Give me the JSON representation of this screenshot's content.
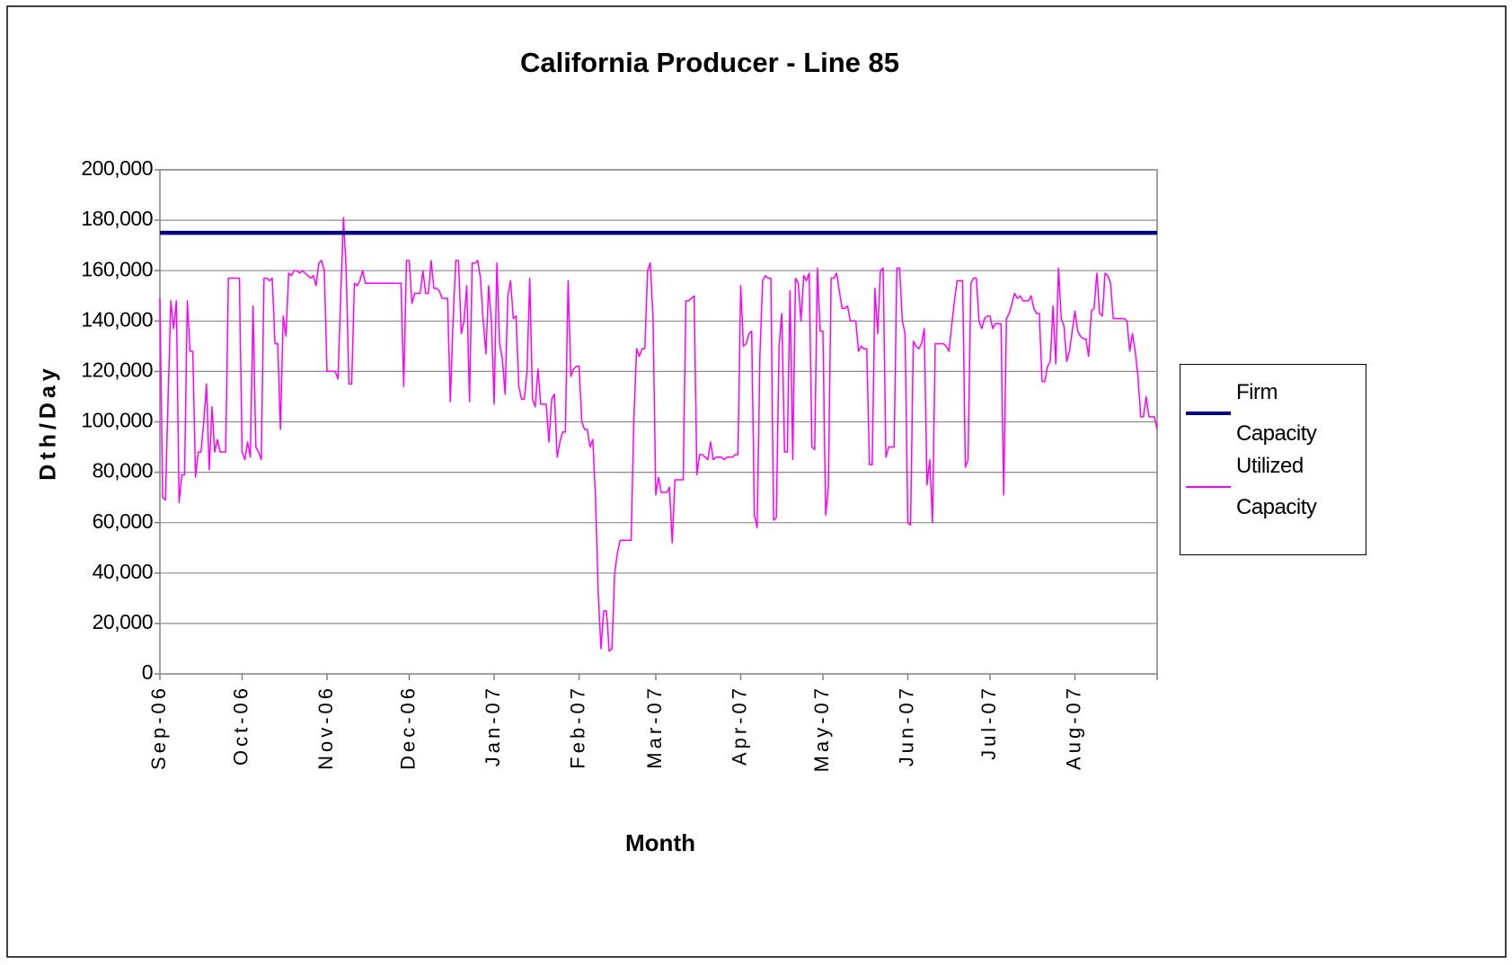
{
  "chart_data": {
    "type": "line",
    "title": "California Producer - Line 85",
    "xlabel": "Month",
    "ylabel": "Dth/Day",
    "categories": [
      "Sep-06",
      null,
      null,
      null,
      null,
      null,
      null,
      null,
      null,
      null,
      null,
      null,
      null,
      null,
      null,
      null,
      null,
      null,
      null,
      null,
      null,
      null,
      null,
      null,
      null,
      null,
      null,
      null,
      null,
      null,
      "Oct-06",
      null,
      null,
      null,
      null,
      null,
      null,
      null,
      null,
      null,
      null,
      null,
      null,
      null,
      null,
      null,
      null,
      null,
      null,
      null,
      null,
      null,
      null,
      null,
      null,
      null,
      null,
      null,
      null,
      null,
      null,
      "Nov-06",
      null,
      null,
      null,
      null,
      null,
      null,
      null,
      null,
      null,
      null,
      null,
      null,
      null,
      null,
      null,
      null,
      null,
      null,
      null,
      null,
      null,
      null,
      null,
      null,
      null,
      null,
      null,
      null,
      null,
      "Dec-06",
      null,
      null,
      null,
      null,
      null,
      null,
      null,
      null,
      null,
      null,
      null,
      null,
      null,
      null,
      null,
      null,
      null,
      null,
      null,
      null,
      null,
      null,
      null,
      null,
      null,
      null,
      null,
      null,
      null,
      null,
      "Jan-07",
      null,
      null,
      null,
      null,
      null,
      null,
      null,
      null,
      null,
      null,
      null,
      null,
      null,
      null,
      null,
      null,
      null,
      null,
      null,
      null,
      null,
      null,
      null,
      null,
      null,
      null,
      null,
      null,
      null,
      null,
      "Feb-07",
      null,
      null,
      null,
      null,
      null,
      null,
      null,
      null,
      null,
      null,
      null,
      null,
      null,
      null,
      null,
      null,
      null,
      null,
      null,
      null,
      null,
      null,
      null,
      null,
      null,
      null,
      null,
      "Mar-07",
      null,
      null,
      null,
      null,
      null,
      null,
      null,
      null,
      null,
      null,
      null,
      null,
      null,
      null,
      null,
      null,
      null,
      null,
      null,
      null,
      null,
      null,
      null,
      null,
      null,
      null,
      null,
      null,
      null,
      null,
      "Apr-07",
      null,
      null,
      null,
      null,
      null,
      null,
      null,
      null,
      null,
      null,
      null,
      null,
      null,
      null,
      null,
      null,
      null,
      null,
      null,
      null,
      null,
      null,
      null,
      null,
      null,
      null,
      null,
      null,
      null,
      "May-07",
      null,
      null,
      null,
      null,
      null,
      null,
      null,
      null,
      null,
      null,
      null,
      null,
      null,
      null,
      null,
      null,
      null,
      null,
      null,
      null,
      null,
      null,
      null,
      null,
      null,
      null,
      null,
      null,
      null,
      null,
      "Jun-07",
      null,
      null,
      null,
      null,
      null,
      null,
      null,
      null,
      null,
      null,
      null,
      null,
      null,
      null,
      null,
      null,
      null,
      null,
      null,
      null,
      null,
      null,
      null,
      null,
      null,
      null,
      null,
      null,
      null,
      "Jul-07",
      null,
      null,
      null,
      null,
      null,
      null,
      null,
      null,
      null,
      null,
      null,
      null,
      null,
      null,
      null,
      null,
      null,
      null,
      null,
      null,
      null,
      null,
      null,
      null,
      null,
      null,
      null,
      null,
      null,
      null,
      "Aug-07",
      null,
      null,
      null,
      null,
      null,
      null,
      null,
      null,
      null,
      null,
      null,
      null,
      null,
      null,
      null,
      null,
      null,
      null,
      null,
      null,
      null,
      null,
      null,
      null,
      null,
      null,
      null,
      null,
      null,
      null
    ],
    "series": [
      {
        "name": "Firm Capacity",
        "color": "#000080",
        "values": [
          175000,
          175000,
          175000,
          175000,
          175000,
          175000,
          175000,
          175000,
          175000,
          175000,
          175000,
          175000,
          175000,
          175000,
          175000,
          175000,
          175000,
          175000,
          175000,
          175000,
          175000,
          175000,
          175000,
          175000,
          175000,
          175000,
          175000,
          175000,
          175000,
          175000,
          175000,
          175000,
          175000,
          175000,
          175000,
          175000,
          175000,
          175000,
          175000,
          175000,
          175000,
          175000,
          175000,
          175000,
          175000,
          175000,
          175000,
          175000,
          175000,
          175000,
          175000,
          175000,
          175000,
          175000,
          175000,
          175000,
          175000,
          175000,
          175000,
          175000,
          175000,
          175000,
          175000,
          175000,
          175000,
          175000,
          175000,
          175000,
          175000,
          175000,
          175000,
          175000,
          175000,
          175000,
          175000,
          175000,
          175000,
          175000,
          175000,
          175000,
          175000,
          175000,
          175000,
          175000,
          175000,
          175000,
          175000,
          175000,
          175000,
          175000,
          175000,
          175000,
          175000,
          175000,
          175000,
          175000,
          175000,
          175000,
          175000,
          175000,
          175000,
          175000,
          175000,
          175000,
          175000,
          175000,
          175000,
          175000,
          175000,
          175000,
          175000,
          175000,
          175000,
          175000,
          175000,
          175000,
          175000,
          175000,
          175000,
          175000,
          175000,
          175000,
          175000,
          175000,
          175000,
          175000,
          175000,
          175000,
          175000,
          175000,
          175000,
          175000,
          175000,
          175000,
          175000,
          175000,
          175000,
          175000,
          175000,
          175000,
          175000,
          175000,
          175000,
          175000,
          175000,
          175000,
          175000,
          175000,
          175000,
          175000,
          175000,
          175000,
          175000,
          175000,
          175000,
          175000,
          175000,
          175000,
          175000,
          175000,
          175000,
          175000,
          175000,
          175000,
          175000,
          175000,
          175000,
          175000,
          175000,
          175000,
          175000,
          175000,
          175000,
          175000,
          175000,
          175000,
          175000,
          175000,
          175000,
          175000,
          175000,
          175000,
          175000,
          175000,
          175000,
          175000,
          175000,
          175000,
          175000,
          175000,
          175000,
          175000,
          175000,
          175000,
          175000,
          175000,
          175000,
          175000,
          175000,
          175000,
          175000,
          175000,
          175000,
          175000,
          175000,
          175000,
          175000,
          175000,
          175000,
          175000,
          175000,
          175000,
          175000,
          175000,
          175000,
          175000,
          175000,
          175000,
          175000,
          175000,
          175000,
          175000,
          175000,
          175000,
          175000,
          175000,
          175000,
          175000,
          175000,
          175000,
          175000,
          175000,
          175000,
          175000,
          175000,
          175000,
          175000,
          175000,
          175000,
          175000,
          175000,
          175000,
          175000,
          175000,
          175000,
          175000,
          175000,
          175000,
          175000,
          175000,
          175000,
          175000,
          175000,
          175000,
          175000,
          175000,
          175000,
          175000,
          175000,
          175000,
          175000,
          175000,
          175000,
          175000,
          175000,
          175000,
          175000,
          175000,
          175000,
          175000,
          175000,
          175000,
          175000,
          175000,
          175000,
          175000,
          175000,
          175000,
          175000,
          175000,
          175000,
          175000,
          175000,
          175000,
          175000,
          175000,
          175000,
          175000,
          175000,
          175000,
          175000,
          175000,
          175000,
          175000,
          175000,
          175000,
          175000,
          175000,
          175000,
          175000,
          175000,
          175000,
          175000,
          175000,
          175000,
          175000,
          175000,
          175000,
          175000,
          175000,
          175000,
          175000,
          175000,
          175000,
          175000,
          175000,
          175000,
          175000,
          175000,
          175000,
          175000,
          175000,
          175000,
          175000,
          175000,
          175000,
          175000,
          175000,
          175000,
          175000,
          175000,
          175000,
          175000,
          175000,
          175000,
          175000,
          175000,
          175000,
          175000,
          175000,
          175000,
          175000,
          175000,
          175000,
          175000,
          175000,
          175000,
          175000,
          175000,
          175000,
          175000,
          175000,
          175000,
          175000,
          175000,
          175000,
          175000,
          175000,
          175000,
          175000,
          175000,
          175000,
          175000,
          175000,
          175000
        ]
      },
      {
        "name": "Utilized Capacity",
        "color": "#ff00ff",
        "values": [
          149000,
          70000,
          69000,
          110000,
          148000,
          137000,
          148000,
          68000,
          79000,
          79000,
          148000,
          128000,
          128000,
          78000,
          88000,
          88000,
          100000,
          115000,
          81000,
          106000,
          88000,
          93000,
          88000,
          88000,
          88000,
          157000,
          157000,
          157000,
          157000,
          157000,
          88000,
          85000,
          92000,
          86000,
          146000,
          90000,
          88000,
          85000,
          157000,
          157000,
          156000,
          157000,
          131000,
          131000,
          97000,
          142000,
          134000,
          159000,
          158000,
          160000,
          160000,
          159000,
          160000,
          159000,
          158000,
          157000,
          158000,
          154000,
          163000,
          164000,
          160000,
          120000,
          120000,
          120000,
          120000,
          117000,
          150000,
          181000,
          160000,
          115000,
          115000,
          155000,
          154000,
          156000,
          160000,
          155000,
          155000,
          155000,
          155000,
          155000,
          155000,
          155000,
          155000,
          155000,
          155000,
          155000,
          155000,
          155000,
          155000,
          114000,
          164000,
          164000,
          147000,
          151000,
          151000,
          151000,
          160000,
          151000,
          151000,
          164000,
          153000,
          153000,
          152000,
          149000,
          149000,
          149000,
          108000,
          140000,
          164000,
          164000,
          135000,
          140000,
          154000,
          108000,
          163000,
          163000,
          164000,
          157000,
          140000,
          127000,
          154000,
          140000,
          107000,
          163000,
          131000,
          125000,
          111000,
          150000,
          156000,
          141000,
          142000,
          114000,
          109000,
          109000,
          120000,
          157000,
          109000,
          106000,
          121000,
          107000,
          107000,
          107000,
          92000,
          109000,
          111000,
          86000,
          92000,
          96000,
          96000,
          156000,
          118000,
          121000,
          122000,
          122000,
          100000,
          97000,
          97000,
          90000,
          93000,
          70000,
          32000,
          10000,
          25000,
          25000,
          9000,
          10000,
          40000,
          48000,
          53000,
          53000,
          53000,
          53000,
          53000,
          101000,
          129000,
          126000,
          129000,
          129000,
          160000,
          163000,
          141000,
          71000,
          78000,
          72000,
          72000,
          72000,
          74000,
          52000,
          77000,
          77000,
          77000,
          77000,
          148000,
          148000,
          149000,
          150000,
          79000,
          87000,
          87000,
          86000,
          85000,
          92000,
          85000,
          86000,
          86000,
          86000,
          85000,
          86000,
          86000,
          86000,
          87000,
          87000,
          154000,
          130000,
          131000,
          135000,
          136000,
          63000,
          58000,
          126000,
          156000,
          158000,
          157000,
          157000,
          61000,
          62000,
          130000,
          143000,
          88000,
          88000,
          152000,
          85000,
          157000,
          155000,
          140000,
          158000,
          156000,
          159000,
          90000,
          89000,
          161000,
          136000,
          136000,
          63000,
          74000,
          157000,
          157000,
          159000,
          152000,
          145000,
          145000,
          146000,
          140000,
          140000,
          140000,
          128000,
          130000,
          129000,
          129000,
          83000,
          83000,
          153000,
          135000,
          160000,
          161000,
          86000,
          90000,
          90000,
          90000,
          161000,
          161000,
          140000,
          135000,
          60000,
          59000,
          132000,
          130000,
          129000,
          131000,
          137000,
          75000,
          85000,
          60000,
          131000,
          131000,
          131000,
          131000,
          130000,
          128000,
          138000,
          148000,
          156000,
          156000,
          156000,
          82000,
          85000,
          155000,
          157000,
          157000,
          140000,
          137000,
          141000,
          142000,
          142000,
          137000,
          139000,
          139000,
          139000,
          71000,
          141000,
          143000,
          147000,
          151000,
          149000,
          150000,
          148000,
          148000,
          148000,
          150000,
          145000,
          143000,
          143000,
          116000,
          116000,
          122000,
          124000,
          146000,
          123000,
          161000,
          141000,
          138000,
          124000,
          128000,
          136000,
          144000,
          136000,
          134000,
          133000,
          133000,
          126000,
          144000,
          145000,
          159000,
          143000,
          142000,
          159000,
          158000,
          155000,
          141000,
          141000,
          141000,
          141000,
          141000,
          140000,
          128000,
          135000,
          128000,
          118000,
          102000,
          102000,
          110000,
          102000,
          102000,
          102000,
          97000
        ]
      }
    ],
    "ylim": [
      0,
      200000
    ],
    "yticks": [
      0,
      {
        "value": 20000,
        "label": "20,000"
      },
      {
        "value": 40000,
        "label": "40,000"
      },
      {
        "value": 60000,
        "label": "60,000"
      },
      {
        "value": 80000,
        "label": "80,000"
      },
      {
        "value": 100000,
        "label": "100,000"
      },
      {
        "value": 120000,
        "label": "120,000"
      },
      {
        "value": 140000,
        "label": "140,000"
      },
      {
        "value": 160000,
        "label": "160,000"
      },
      {
        "value": 180000,
        "label": "180,000"
      },
      {
        "value": 200000,
        "label": "200,000"
      }
    ],
    "grid": true,
    "legend": "right"
  }
}
